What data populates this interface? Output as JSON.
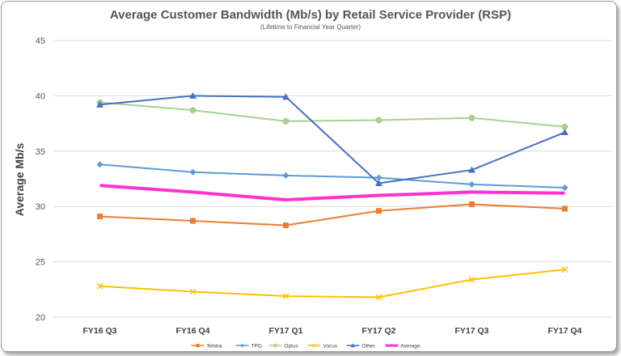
{
  "chart_data": {
    "type": "line",
    "title": "Average Customer Bandwidth (Mb/s) by Retail Service Provider (RSP)",
    "subtitle": "(Lifetime to Financial Year Quarter)",
    "ylabel": "Average Mb/s",
    "xlabel": "",
    "categories": [
      "FY16 Q3",
      "FY16 Q4",
      "FY17 Q1",
      "FY17 Q2",
      "FY17 Q3",
      "FY17 Q4"
    ],
    "ylim": [
      20,
      45
    ],
    "yticks": [
      20,
      25,
      30,
      35,
      40,
      45
    ],
    "grid": true,
    "legend_position": "bottom",
    "series": [
      {
        "name": "Telstra",
        "color": "#ED7D31",
        "marker": "square",
        "values": [
          29.1,
          28.7,
          28.3,
          29.6,
          30.2,
          29.8
        ]
      },
      {
        "name": "TPG",
        "color": "#5B9BD5",
        "marker": "diamond",
        "values": [
          33.8,
          33.1,
          32.8,
          32.6,
          32.0,
          31.7
        ]
      },
      {
        "name": "Optus",
        "color": "#A9D18E",
        "marker": "circle",
        "values": [
          39.4,
          38.7,
          37.7,
          37.8,
          38.0,
          37.2
        ]
      },
      {
        "name": "Vocus",
        "color": "#FFC000",
        "marker": "x",
        "values": [
          22.8,
          22.3,
          21.9,
          21.8,
          23.4,
          24.3
        ]
      },
      {
        "name": "Other",
        "color": "#4472C4",
        "marker": "triangle",
        "values": [
          39.2,
          40.0,
          39.9,
          32.1,
          33.3,
          36.7
        ]
      },
      {
        "name": "Average",
        "color": "#FF33CC",
        "marker": "none",
        "values": [
          31.9,
          31.3,
          30.6,
          31.0,
          31.3,
          31.2
        ]
      }
    ]
  }
}
